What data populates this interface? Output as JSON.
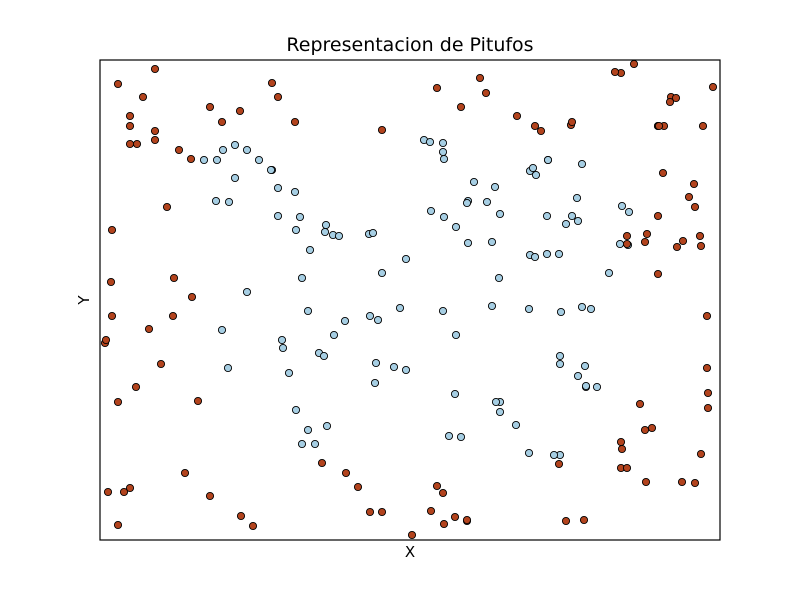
{
  "chart_data": {
    "type": "scatter",
    "title": "Representacion de Pitufos",
    "xlabel": "X",
    "ylabel": "Y",
    "xlim": [
      0,
      620
    ],
    "ylim": [
      0,
      480
    ],
    "grid": false,
    "ticks": false,
    "marker_edge_color": "#000000",
    "series": [
      {
        "color": "#a6cee3",
        "points": [
          [
            117,
            380
          ],
          [
            123,
            390
          ],
          [
            135,
            395
          ],
          [
            104,
            380
          ],
          [
            172,
            370
          ],
          [
            159,
            380
          ],
          [
            116,
            339
          ],
          [
            135,
            362
          ],
          [
            147,
            390
          ],
          [
            178,
            352
          ],
          [
            171,
            370
          ],
          [
            195,
            348
          ],
          [
            178,
            324
          ],
          [
            129,
            338
          ],
          [
            147,
            248
          ],
          [
            122,
            210
          ],
          [
            128,
            172
          ],
          [
            196,
            310
          ],
          [
            210,
            290
          ],
          [
            200,
            323
          ],
          [
            219,
            187
          ],
          [
            233,
            305
          ],
          [
            226,
            315
          ],
          [
            225,
            308
          ],
          [
            239,
            304
          ],
          [
            202,
            262
          ],
          [
            208,
            229
          ],
          [
            245,
            219
          ],
          [
            182,
            200
          ],
          [
            189,
            167
          ],
          [
            183,
            192
          ],
          [
            196,
            130
          ],
          [
            224,
            184
          ],
          [
            234,
            205
          ],
          [
            208,
            110
          ],
          [
            202,
            96
          ],
          [
            215,
            96
          ],
          [
            227,
            114
          ],
          [
            269,
            306
          ],
          [
            273,
            307
          ],
          [
            270,
            224
          ],
          [
            278,
            220
          ],
          [
            282,
            267
          ],
          [
            276,
            177
          ],
          [
            275,
            157
          ],
          [
            294,
            173
          ],
          [
            306,
            281
          ],
          [
            300,
            232
          ],
          [
            306,
            170
          ],
          [
            324,
            400
          ],
          [
            330,
            398
          ],
          [
            343,
            397
          ],
          [
            344,
            381
          ],
          [
            343,
            388
          ],
          [
            331,
            329
          ],
          [
            344,
            323
          ],
          [
            356,
            205
          ],
          [
            355,
            146
          ],
          [
            349,
            104
          ],
          [
            374,
            358
          ],
          [
            395,
            353
          ],
          [
            368,
            339
          ],
          [
            387,
            338
          ],
          [
            367,
            337
          ],
          [
            392,
            298
          ],
          [
            400,
            326
          ],
          [
            399,
            262
          ],
          [
            392,
            234
          ],
          [
            400,
            138
          ],
          [
            356,
            313
          ],
          [
            368,
            297
          ],
          [
            361,
            103
          ],
          [
            343,
            229
          ],
          [
            430,
            369
          ],
          [
            433,
            372
          ],
          [
            436,
            365
          ],
          [
            448,
            380
          ],
          [
            447,
            324
          ],
          [
            472,
            324
          ],
          [
            478,
            319
          ],
          [
            447,
            286
          ],
          [
            459,
            286
          ],
          [
            482,
            233
          ],
          [
            430,
            285
          ],
          [
            429,
            231
          ],
          [
            435,
            283
          ],
          [
            466,
            316
          ],
          [
            482,
            376
          ],
          [
            477,
            342
          ],
          [
            448,
            380
          ],
          [
            461,
            228
          ],
          [
            491,
            231
          ],
          [
            486,
            153
          ],
          [
            460,
            184
          ],
          [
            460,
            176
          ],
          [
            485,
            174
          ],
          [
            497,
            153
          ],
          [
            478,
            164
          ],
          [
            460,
            85
          ],
          [
            486,
            154
          ],
          [
            454,
            85
          ],
          [
            429,
            87
          ],
          [
            416,
            115
          ],
          [
            396,
            138
          ],
          [
            400,
            128
          ],
          [
            509,
            267
          ],
          [
            522,
            334
          ],
          [
            528,
            295
          ],
          [
            520,
            296
          ],
          [
            529,
            328
          ]
        ]
      },
      {
        "color": "#b2431d",
        "points": [
          [
            18,
            456
          ],
          [
            30,
            424
          ],
          [
            30,
            414
          ],
          [
            43,
            443
          ],
          [
            55,
            471
          ],
          [
            30,
            396
          ],
          [
            37,
            396
          ],
          [
            55,
            400
          ],
          [
            55,
            409
          ],
          [
            79,
            390
          ],
          [
            91,
            381
          ],
          [
            110,
            433
          ],
          [
            140,
            429
          ],
          [
            122,
            418
          ],
          [
            172,
            457
          ],
          [
            178,
            443
          ],
          [
            195,
            418
          ],
          [
            67,
            333
          ],
          [
            12,
            310
          ],
          [
            74,
            262
          ],
          [
            92,
            243
          ],
          [
            73,
            224
          ],
          [
            11,
            258
          ],
          [
            12,
            224
          ],
          [
            49,
            211
          ],
          [
            61,
            176
          ],
          [
            5,
            197
          ],
          [
            6,
            200
          ],
          [
            18,
            138
          ],
          [
            36,
            153
          ],
          [
            98,
            139
          ],
          [
            8,
            48
          ],
          [
            24,
            48
          ],
          [
            30,
            52
          ],
          [
            18,
            15
          ],
          [
            85,
            67
          ],
          [
            110,
            44
          ],
          [
            141,
            24
          ],
          [
            153,
            14
          ],
          [
            222,
            77
          ],
          [
            246,
            67
          ],
          [
            258,
            53
          ],
          [
            270,
            28
          ],
          [
            282,
            28
          ],
          [
            337,
            54
          ],
          [
            343,
            47
          ],
          [
            355,
            23
          ],
          [
            367,
            19
          ],
          [
            312,
            5
          ],
          [
            331,
            29
          ],
          [
            344,
            16
          ],
          [
            367,
            20
          ],
          [
            282,
            410
          ],
          [
            337,
            452
          ],
          [
            380,
            462
          ],
          [
            386,
            447
          ],
          [
            361,
            433
          ],
          [
            417,
            424
          ],
          [
            435,
            414
          ],
          [
            441,
            409
          ],
          [
            471,
            415
          ],
          [
            472,
            418
          ],
          [
            459,
            76
          ],
          [
            466,
            19
          ],
          [
            484,
            20
          ],
          [
            521,
            72
          ],
          [
            521,
            98
          ],
          [
            534,
            476
          ],
          [
            521,
            467
          ],
          [
            515,
            468
          ],
          [
            540,
            136
          ],
          [
            545,
            298
          ],
          [
            552,
            112
          ],
          [
            547,
            306
          ],
          [
            558,
            414
          ],
          [
            558,
            414
          ],
          [
            564,
            414
          ],
          [
            571,
            443
          ],
          [
            576,
            442
          ],
          [
            577,
            293
          ],
          [
            583,
            299
          ],
          [
            589,
            343
          ],
          [
            594,
            356
          ],
          [
            595,
            333
          ],
          [
            600,
            304
          ],
          [
            601,
            294
          ],
          [
            607,
            224
          ],
          [
            603,
            414
          ],
          [
            608,
            132
          ],
          [
            608,
            147
          ],
          [
            613,
            453
          ],
          [
            607,
            172
          ],
          [
            527,
            304
          ],
          [
            527,
            296
          ],
          [
            545,
            110
          ],
          [
            563,
            367
          ],
          [
            558,
            324
          ],
          [
            558,
            266
          ],
          [
            559,
            414
          ],
          [
            546,
            58
          ],
          [
            582,
            58
          ],
          [
            570,
            438
          ],
          [
            522,
            91
          ],
          [
            527,
            72
          ],
          [
            595,
            57
          ],
          [
            601,
            86
          ]
        ]
      }
    ]
  }
}
